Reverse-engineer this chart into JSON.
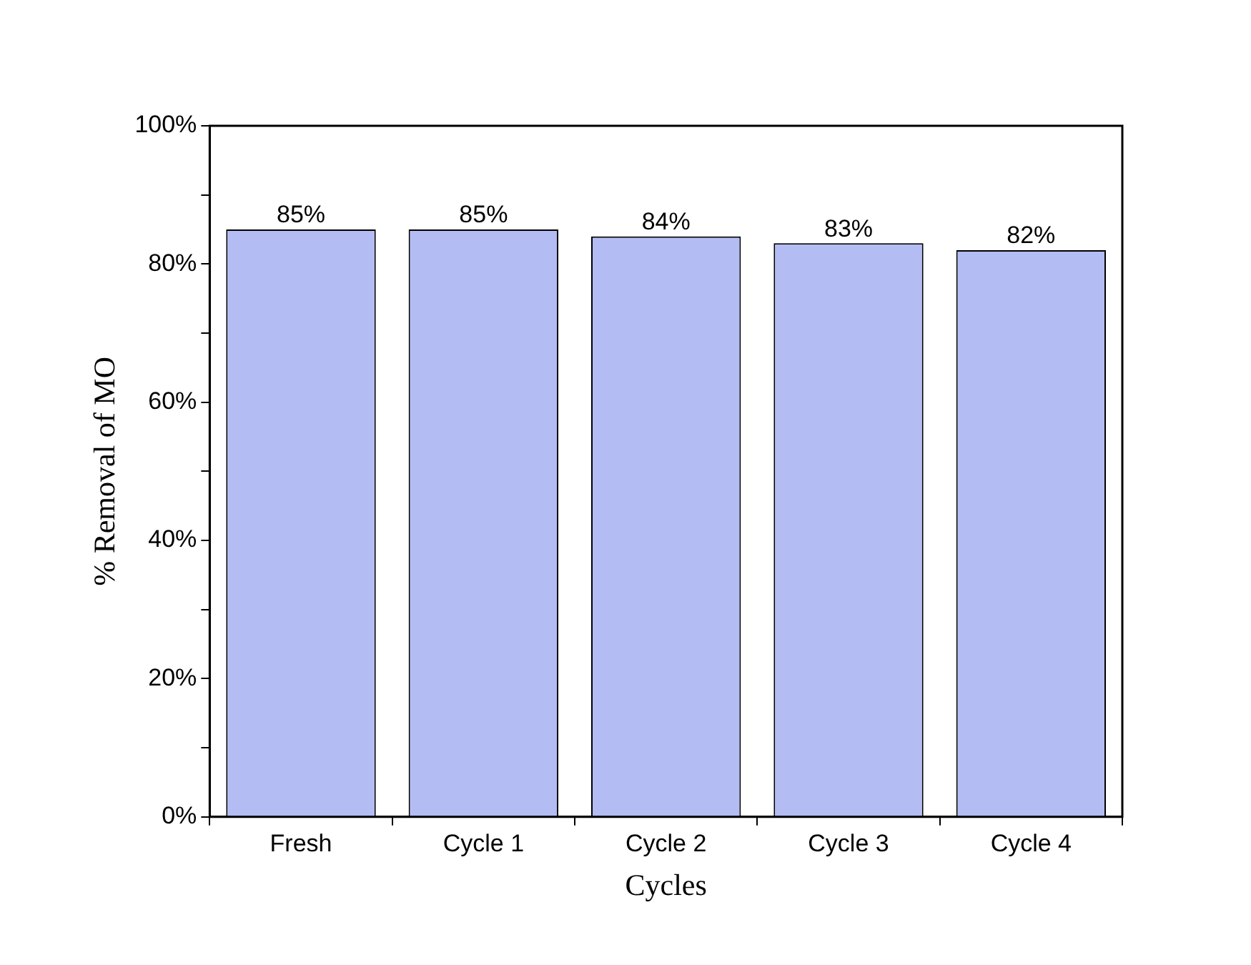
{
  "chart_data": {
    "type": "bar",
    "xlabel": "Cycles",
    "ylabel": "% Removal of MO",
    "categories": [
      "Fresh",
      "Cycle 1",
      "Cycle 2",
      "Cycle 3",
      "Cycle 4"
    ],
    "values": [
      85,
      85,
      84,
      83,
      82
    ],
    "value_labels": [
      "85%",
      "85%",
      "84%",
      "83%",
      "82%"
    ],
    "color": "#b4bcf4",
    "ylim": [
      0,
      100
    ],
    "yticks": [
      {
        "value": 0,
        "label": "0%"
      },
      {
        "value": 10,
        "label": null
      },
      {
        "value": 20,
        "label": "20%"
      },
      {
        "value": 30,
        "label": null
      },
      {
        "value": 40,
        "label": "40%"
      },
      {
        "value": 50,
        "label": null
      },
      {
        "value": 60,
        "label": "60%"
      },
      {
        "value": 70,
        "label": null
      },
      {
        "value": 80,
        "label": "80%"
      },
      {
        "value": 90,
        "label": null
      },
      {
        "value": 100,
        "label": "100%"
      }
    ],
    "grid": false,
    "legend": false
  }
}
